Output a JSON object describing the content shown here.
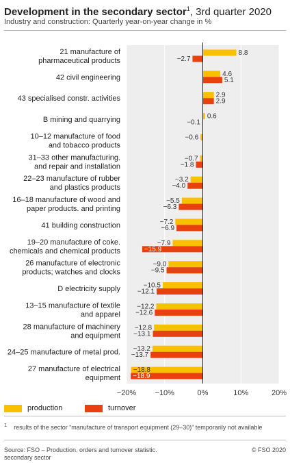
{
  "header": {
    "title_bold": "Development in the secondary sector",
    "title_sup": "1",
    "title_rest": ", 3rd quarter 2020",
    "subtitle": "Industry and construction: Quarterly year-on-year change in %"
  },
  "colors": {
    "production": "#f9c000",
    "turnover": "#e8410f",
    "plot_bg": "#eeeeee",
    "grid": "#ffffff"
  },
  "chart_data": {
    "type": "bar",
    "orientation": "horizontal",
    "categories": [
      [
        "21 manufacture of",
        "pharmaceutical products"
      ],
      [
        "42 civil engineering"
      ],
      [
        "43 specialised constr. activities"
      ],
      [
        "B mining and quarrying"
      ],
      [
        "10–12 manufacture of food",
        "and tobacco products"
      ],
      [
        "31–33 other manufacturing.",
        "and repair and installation"
      ],
      [
        "22–23 manufacture of rubber",
        "and plastics products"
      ],
      [
        "16–18 manufacture of wood and",
        "paper products. and printing"
      ],
      [
        "41 building construction"
      ],
      [
        "19–20 manufacture of coke.",
        "chemicals and chemical products"
      ],
      [
        "26 manufacture of electronic",
        "products; watches and clocks"
      ],
      [
        "D electricity supply"
      ],
      [
        "13–15 manufacture of textile",
        "and apparel"
      ],
      [
        "28 manufacture of machinery",
        "and equipment"
      ],
      [
        "24–25 manufacture of metal prod."
      ],
      [
        "27 manufacture of electrical",
        "equipment"
      ]
    ],
    "series": [
      {
        "name": "production",
        "values": [
          8.8,
          4.6,
          2.9,
          0.6,
          -0.6,
          -0.7,
          -3.2,
          -5.5,
          -7.2,
          -7.9,
          -9.0,
          -10.5,
          -12.2,
          -12.8,
          -13.2,
          -18.8
        ],
        "labels": [
          "8.8",
          "4.6",
          "2.9",
          "0.6",
          "−0.6",
          "−0.7",
          "−3.2",
          "−5.5",
          "−7.2",
          "−7.9",
          "−9.0",
          "−10.5",
          "−12.2",
          "−12.8",
          "−13.2",
          "−18.8"
        ]
      },
      {
        "name": "turnover",
        "values": [
          -2.7,
          5.1,
          2.9,
          -0.1,
          null,
          -1.8,
          -4.0,
          -6.3,
          -6.9,
          -15.9,
          -9.5,
          -12.1,
          -12.6,
          -13.1,
          -13.7,
          -18.9
        ],
        "labels": [
          "−2.7",
          "5.1",
          "2.9",
          "−0.1",
          "",
          "−1.8",
          "−4.0",
          "−6.3",
          "−6.9",
          "−15.9",
          "−9.5",
          "−12.1",
          "−12.6",
          "−13.1",
          "−13.7",
          "−18.9"
        ]
      }
    ],
    "xlim": [
      -20,
      20
    ],
    "xticks": [
      -20,
      -10,
      0,
      10,
      20
    ],
    "xtick_labels": [
      "−20%",
      "−10%",
      "0%",
      "10%",
      "20%"
    ],
    "grid": true,
    "legend": "bottom-left"
  },
  "legend": {
    "production_label": "production",
    "turnover_label": "turnover"
  },
  "footnote": {
    "mark": "1",
    "text": "results of the sector “manufacture of transport equipment (29–30)” temporarily not available"
  },
  "source": {
    "text": "Source: FSO – Production. orders and turnover statistic. secondary sector",
    "copyright": "© FSO 2020"
  }
}
